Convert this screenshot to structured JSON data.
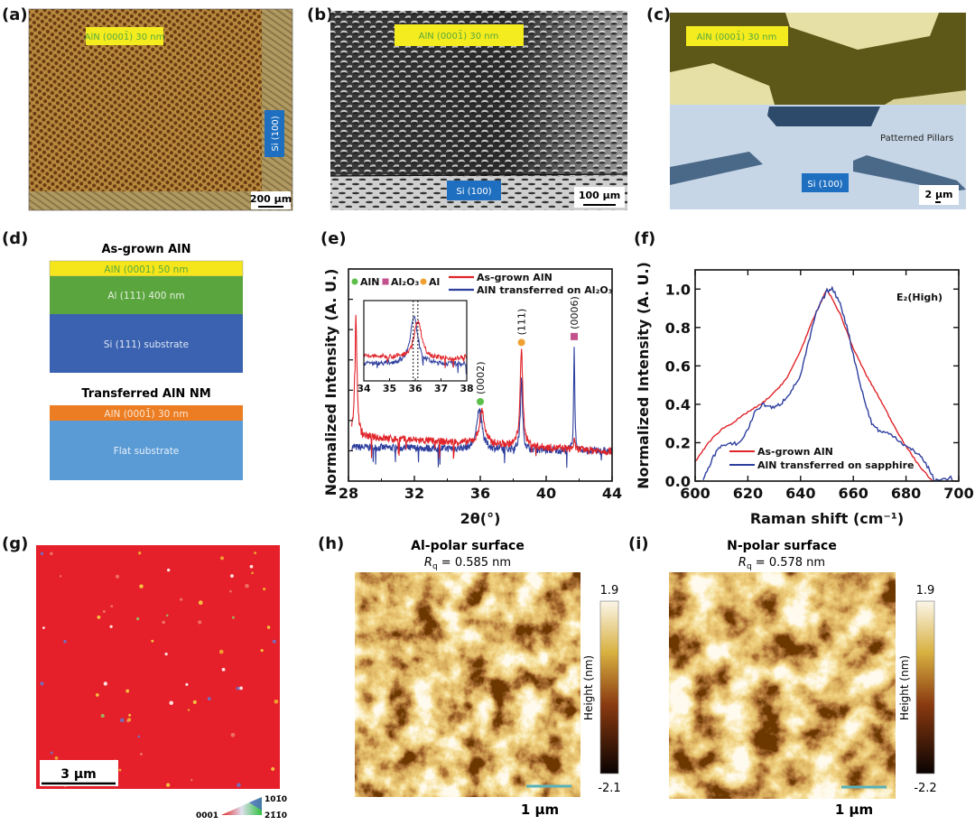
{
  "panels": {
    "a": {
      "label": "(a)",
      "film_label": "AlN (0001̄) 30 nm",
      "substrate_label": "Si (100)",
      "scale_bar": "200 µm"
    },
    "b": {
      "label": "(b)",
      "film_label": "AlN (0001̄) 30 nm",
      "substrate_label": "Si (100)",
      "scale_bar": "100 µm"
    },
    "c": {
      "label": "(c)",
      "film_label": "AlN (0001̄) 30 nm",
      "pillars_label": "Patterned Pillars",
      "substrate_label": "Si (100)",
      "scale_bar": "2 µm"
    },
    "d": {
      "label": "(d)",
      "stacks": [
        {
          "title": "As-grown AlN",
          "layers": [
            {
              "text": "AlN (0001) 50 nm",
              "color": "#f4e61a",
              "text_color": "#5aa83c"
            },
            {
              "text": "Al (111) 400 nm",
              "color": "#5aa53e",
              "text_color": "#e6f0e0"
            },
            {
              "text": "Si (111) substrate",
              "color": "#3a62b0",
              "text_color": "#dde6f4"
            }
          ]
        },
        {
          "title": "Transferred AlN NM",
          "layers": [
            {
              "text": "AlN (0001̄) 30 nm",
              "color": "#ec7d22",
              "text_color": "#fbe6d4"
            },
            {
              "text": "Flat substrate",
              "color": "#5b9bd5",
              "text_color": "#e6f0fa"
            }
          ]
        }
      ]
    },
    "e": {
      "label": "(e)"
    },
    "f": {
      "label": "(f)"
    },
    "g": {
      "label": "(g)",
      "scale_bar": "3 µm",
      "ipf_key": {
        "corner_left": "0001",
        "corner_top": "101̄0",
        "corner_right": "21̄1̄0"
      }
    },
    "h": {
      "label": "(h)",
      "title": "Al-polar surface",
      "rq_symbol": "R",
      "rq_sub": "q",
      "rq_value": " = 0.585 nm",
      "colorbar": {
        "max": "1.9",
        "min": "-2.1",
        "label": "Height (nm)"
      },
      "scale_bar": "1 µm"
    },
    "i": {
      "label": "(i)",
      "title": "N-polar surface",
      "rq_symbol": "R",
      "rq_sub": "q",
      "rq_value": " = 0.578 nm",
      "colorbar": {
        "max": "1.9",
        "min": "-2.2",
        "label": "Height (nm)"
      },
      "scale_bar": "1 µm"
    }
  },
  "chart_data": [
    {
      "panel": "e",
      "type": "line",
      "xlabel": "2θ(°)",
      "ylabel": "Normalized Intensity (A. U.)",
      "xlim": [
        28,
        44
      ],
      "ylim": [
        0,
        1
      ],
      "x_ticks": [
        "28",
        "32",
        "36",
        "40",
        "44"
      ],
      "y_tick_labels": false,
      "legend": {
        "markers": [
          {
            "label": "AlN",
            "shape": "circle",
            "color": "#5cbf4a"
          },
          {
            "label": "Al₂O₃",
            "shape": "square",
            "color": "#c2508c"
          },
          {
            "label": "Al",
            "shape": "circle",
            "color": "#f0a030"
          }
        ],
        "placement": "top"
      },
      "series": [
        {
          "name": "As-grown AlN",
          "color": "#e0242a",
          "baseline": [
            [
              28.2,
              0.21
            ],
            [
              44,
              0.14
            ]
          ],
          "peaks": [
            [
              28.45,
              0.56,
              0.08
            ],
            [
              36.1,
              0.16,
              0.18
            ],
            [
              38.5,
              0.45,
              0.1
            ],
            [
              41.7,
              0.04,
              0.05
            ]
          ]
        },
        {
          "name": "AlN transferred on Al₂O₃",
          "color": "#2e3f9e",
          "baseline": [
            [
              28.2,
              0.16
            ],
            [
              44,
              0.14
            ]
          ],
          "peaks": [
            [
              35.95,
              0.2,
              0.18
            ],
            [
              38.5,
              0.33,
              0.08
            ],
            [
              41.7,
              0.5,
              0.04
            ]
          ]
        }
      ],
      "peak_labels": [
        {
          "text": "(0002)",
          "x": 36.0,
          "phase": "AlN"
        },
        {
          "text": "(111)",
          "x": 38.5,
          "phase": "Al"
        },
        {
          "text": "(0006)",
          "x": 41.7,
          "phase": "Al₂O₃"
        }
      ],
      "inset": {
        "xlim": [
          34,
          38
        ],
        "x_ticks": [
          "34",
          "35",
          "36",
          "37",
          "38"
        ],
        "dotted_lines": [
          35.92,
          36.1
        ]
      }
    },
    {
      "panel": "f",
      "type": "line",
      "xlabel": "Raman shift (cm⁻¹)",
      "ylabel": "Normalized Intensity (A. U.)",
      "xlim": [
        600,
        700
      ],
      "ylim": [
        0,
        1.1
      ],
      "x_ticks": [
        "600",
        "620",
        "640",
        "660",
        "680",
        "700"
      ],
      "y_ticks": [
        "0.0",
        "0.2",
        "0.4",
        "0.6",
        "0.8",
        "1.0"
      ],
      "annotation": "E₂(High)",
      "legend": {
        "placement": "bottom-left"
      },
      "series": [
        {
          "name": "As-grown AlN",
          "color": "#e0242a",
          "points": [
            [
              600,
              0.1
            ],
            [
              605,
              0.2
            ],
            [
              610,
              0.27
            ],
            [
              615,
              0.31
            ],
            [
              620,
              0.36
            ],
            [
              625,
              0.4
            ],
            [
              630,
              0.46
            ],
            [
              635,
              0.54
            ],
            [
              640,
              0.68
            ],
            [
              645,
              0.85
            ],
            [
              650,
              1.0
            ],
            [
              655,
              0.87
            ],
            [
              660,
              0.69
            ],
            [
              665,
              0.55
            ],
            [
              670,
              0.43
            ],
            [
              675,
              0.3
            ],
            [
              680,
              0.18
            ],
            [
              685,
              0.08
            ],
            [
              690,
              0.0
            ]
          ]
        },
        {
          "name": "AlN transferred on sapphire",
          "color": "#2e3f9e",
          "points": [
            [
              603,
              0
            ],
            [
              606,
              0.1
            ],
            [
              609,
              0.18
            ],
            [
              613,
              0.19
            ],
            [
              617,
              0.2
            ],
            [
              620,
              0.27
            ],
            [
              623,
              0.37
            ],
            [
              626,
              0.4
            ],
            [
              630,
              0.38
            ],
            [
              633,
              0.41
            ],
            [
              637,
              0.48
            ],
            [
              640,
              0.55
            ],
            [
              643,
              0.72
            ],
            [
              646,
              0.88
            ],
            [
              650,
              0.99
            ],
            [
              652,
              1.0
            ],
            [
              655,
              0.93
            ],
            [
              658,
              0.78
            ],
            [
              661,
              0.6
            ],
            [
              664,
              0.43
            ],
            [
              667,
              0.3
            ],
            [
              670,
              0.26
            ],
            [
              675,
              0.24
            ],
            [
              680,
              0.18
            ],
            [
              685,
              0.14
            ],
            [
              688,
              0.08
            ],
            [
              691,
              0.0
            ],
            [
              697,
              0.02
            ],
            [
              698,
              0.0
            ]
          ]
        }
      ]
    }
  ]
}
